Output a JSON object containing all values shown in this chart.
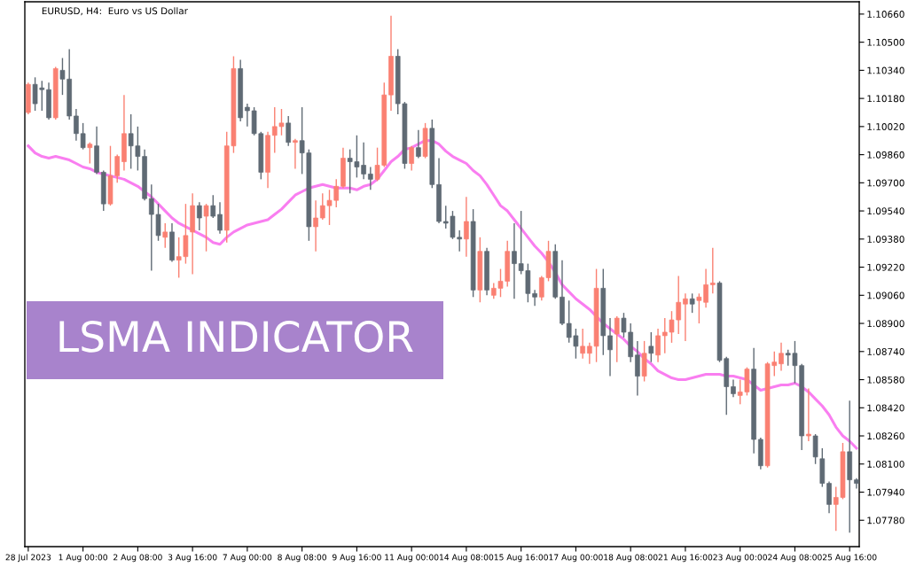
{
  "chart_data": {
    "type": "candlestick",
    "title": "EURUSD, H4:  Euro vs US Dollar",
    "annotations": [
      "LSMA INDICATOR"
    ],
    "categories": [
      "28 Jul 2023",
      null,
      null,
      null,
      null,
      null,
      null,
      null,
      "1 Aug 00:00",
      null,
      null,
      null,
      null,
      null,
      null,
      null,
      "2 Aug 08:00",
      null,
      null,
      null,
      null,
      null,
      null,
      null,
      "3 Aug 16:00",
      null,
      null,
      null,
      null,
      null,
      null,
      null,
      "7 Aug 00:00",
      null,
      null,
      null,
      null,
      null,
      null,
      null,
      "8 Aug 08:00",
      null,
      null,
      null,
      null,
      null,
      null,
      null,
      "9 Aug 16:00",
      null,
      null,
      null,
      null,
      null,
      null,
      null,
      "11 Aug 00:00",
      null,
      null,
      null,
      null,
      null,
      null,
      null,
      "14 Aug 08:00",
      null,
      null,
      null,
      null,
      null,
      null,
      null,
      "15 Aug 16:00",
      null,
      null,
      null,
      null,
      null,
      null,
      null,
      "17 Aug 00:00",
      null,
      null,
      null,
      null,
      null,
      null,
      null,
      "18 Aug 08:00",
      null,
      null,
      null,
      null,
      null,
      null,
      null,
      "21 Aug 16:00",
      null,
      null,
      null,
      null,
      null,
      null,
      null,
      "23 Aug 00:00",
      null,
      null,
      null,
      null,
      null,
      null,
      null,
      "24 Aug 08:00",
      null,
      null,
      null,
      null,
      null,
      null,
      null,
      "25 Aug 16:00",
      null
    ],
    "ylim": [
      1.0763,
      1.1073
    ],
    "yticks": [
      {
        "value": 1.1066,
        "label": "1.10660"
      },
      {
        "value": 1.105,
        "label": "1.10500"
      },
      {
        "value": 1.1034,
        "label": "1.10340"
      },
      {
        "value": 1.1018,
        "label": "1.10180"
      },
      {
        "value": 1.1002,
        "label": "1.10020"
      },
      {
        "value": 1.0986,
        "label": "1.09860"
      },
      {
        "value": 1.097,
        "label": "1.09700"
      },
      {
        "value": 1.0954,
        "label": "1.09540"
      },
      {
        "value": 1.0938,
        "label": "1.09380"
      },
      {
        "value": 1.0922,
        "label": "1.09220"
      },
      {
        "value": 1.0906,
        "label": "1.09060"
      },
      {
        "value": 1.089,
        "label": "1.08900"
      },
      {
        "value": 1.0874,
        "label": "1.08740"
      },
      {
        "value": 1.0858,
        "label": "1.08580"
      },
      {
        "value": 1.0842,
        "label": "1.08420"
      },
      {
        "value": 1.0826,
        "label": "1.08260"
      },
      {
        "value": 1.081,
        "label": "1.08100"
      },
      {
        "value": 1.0794,
        "label": "1.07940"
      },
      {
        "value": 1.0778,
        "label": "1.07780"
      }
    ],
    "grid": false,
    "colors": [
      "#fa8072",
      "#5f6a74",
      "#5f6a74",
      "#5f6a74",
      "#fa8072",
      "#5f6a74",
      "#5f6a74",
      "#5f6a74",
      "#5f6a74",
      "#fa8072",
      "#5f6a74",
      "#5f6a74",
      "#fa8072",
      "#fa8072",
      "#fa8072",
      "#5f6a74",
      "#5f6a74",
      "#5f6a74",
      "#5f6a74",
      "#5f6a74",
      "#fa8072",
      "#5f6a74",
      "#fa8072",
      "#fa8072",
      "#fa8072",
      "#5f6a74",
      "#fa8072",
      "#5f6a74",
      "#5f6a74",
      "#fa8072",
      "#fa8072",
      "#5f6a74",
      "#5f6a74",
      "#5f6a74",
      "#5f6a74",
      "#fa8072",
      "#fa8072",
      "#fa8072",
      "#5f6a74",
      "#fa8072",
      "#5f6a74",
      "#5f6a74",
      "#fa8072",
      "#fa8072",
      "#fa8072",
      "#fa8072",
      "#fa8072",
      "#5f6a74",
      "#5f6a74",
      "#5f6a74",
      "#5f6a74",
      "#fa8072",
      "#fa8072",
      "#fa8072",
      "#5f6a74",
      "#5f6a74",
      "#fa8072",
      "#5f6a74",
      "#fa8072",
      "#5f6a74",
      "#5f6a74",
      "#5f6a74",
      "#5f6a74",
      "#5f6a74",
      "#fa8072",
      "#5f6a74",
      "#fa8072",
      "#5f6a74",
      "#fa8072",
      "#fa8072",
      "#fa8072",
      "#5f6a74",
      "#5f6a74",
      "#5f6a74",
      "#5f6a74",
      "#fa8072",
      "#fa8072",
      "#5f6a74",
      "#5f6a74",
      "#5f6a74",
      "#5f6a74",
      "#fa8072",
      "#fa8072",
      "#fa8072",
      "#5f6a74",
      "#5f6a74",
      "#fa8072",
      "#5f6a74",
      "#5f6a74",
      "#5f6a74",
      "#fa8072",
      "#5f6a74",
      "#fa8072",
      "#fa8072",
      "#fa8072",
      "#fa8072",
      "#fa8072",
      "#5f6a74",
      "#fa8072",
      "#fa8072",
      "#fa8072",
      "#5f6a74",
      "#5f6a74",
      "#5f6a74",
      "#fa8072",
      "#fa8072",
      "#5f6a74",
      "#5f6a74",
      "#fa8072",
      "#fa8072",
      "#fa8072",
      "#5f6a74",
      "#5f6a74",
      "#5f6a74",
      "#fa8072",
      "#5f6a74",
      "#5f6a74",
      "#5f6a74",
      "#fa8072",
      "#fa8072",
      "#5f6a74",
      "#5f6a74"
    ],
    "ohlc": [
      [
        1.101,
        1.1027,
        1.1009,
        1.1026
      ],
      [
        1.1026,
        1.103,
        1.1011,
        1.1015
      ],
      [
        1.1024,
        1.1028,
        1.1011,
        1.1023
      ],
      [
        1.1023,
        1.1027,
        1.1006,
        1.1007
      ],
      [
        1.1007,
        1.1036,
        1.1006,
        1.1035
      ],
      [
        1.1034,
        1.1041,
        1.102,
        1.1029
      ],
      [
        1.1029,
        1.1046,
        1.1006,
        1.1008
      ],
      [
        1.1008,
        1.1012,
        1.0994,
        1.0998
      ],
      [
        1.0998,
        1.1004,
        1.0989,
        1.099
      ],
      [
        1.099,
        1.0993,
        1.0981,
        1.0992
      ],
      [
        1.0991,
        1.1002,
        1.0975,
        1.0976
      ],
      [
        1.0976,
        1.0977,
        1.0954,
        1.0958
      ],
      [
        1.0958,
        1.0991,
        1.0957,
        1.0974
      ],
      [
        1.0974,
        1.0986,
        1.097,
        1.0985
      ],
      [
        1.0982,
        1.102,
        1.0977,
        1.0998
      ],
      [
        1.0998,
        1.1009,
        1.0978,
        1.0991
      ],
      [
        1.0991,
        1.1002,
        1.0977,
        1.0985
      ],
      [
        1.0985,
        1.0989,
        1.096,
        1.0961
      ],
      [
        1.0961,
        1.0969,
        1.092,
        1.0952
      ],
      [
        1.0952,
        1.0958,
        1.0937,
        1.094
      ],
      [
        1.0939,
        1.0947,
        1.0933,
        1.0942
      ],
      [
        1.0942,
        1.0947,
        1.0925,
        1.0926
      ],
      [
        1.0926,
        1.0939,
        1.0916,
        1.0928
      ],
      [
        1.0928,
        1.0958,
        1.0924,
        1.094
      ],
      [
        1.0942,
        1.0964,
        1.0918,
        1.0957
      ],
      [
        1.0957,
        1.0959,
        1.0943,
        1.095
      ],
      [
        1.0951,
        1.0958,
        1.0931,
        1.0957
      ],
      [
        1.0957,
        1.0963,
        1.095,
        1.0951
      ],
      [
        1.0952,
        1.0959,
        1.0941,
        1.0943
      ],
      [
        1.0943,
        1.0999,
        1.0936,
        1.0991
      ],
      [
        1.0991,
        1.1042,
        1.0987,
        1.1035
      ],
      [
        1.1035,
        1.104,
        1.1005,
        1.1007
      ],
      [
        1.1013,
        1.1015,
        1.1002,
        1.1011
      ],
      [
        1.1011,
        1.1013,
        1.0997,
        1.0998
      ],
      [
        1.0998,
        1.0999,
        1.0972,
        1.0976
      ],
      [
        1.0976,
        1.0999,
        1.0967,
        1.0997
      ],
      [
        1.0997,
        1.1013,
        1.0987,
        1.1002
      ],
      [
        1.1002,
        1.1012,
        1.0997,
        1.1004
      ],
      [
        1.1004,
        1.1008,
        1.0991,
        1.0993
      ],
      [
        1.0993,
        1.0995,
        1.0978,
        1.0994
      ],
      [
        1.0994,
        1.1013,
        1.0975,
        1.0987
      ],
      [
        1.0987,
        1.0989,
        1.0937,
        1.0945
      ],
      [
        1.0945,
        1.096,
        1.0931,
        1.095
      ],
      [
        1.095,
        1.0964,
        1.0949,
        1.0957
      ],
      [
        1.0957,
        1.0966,
        1.0946,
        1.096
      ],
      [
        1.096,
        1.0972,
        1.0956,
        1.0968
      ],
      [
        1.0968,
        1.099,
        1.0967,
        1.0984
      ],
      [
        1.0984,
        1.0989,
        1.0964,
        1.0982
      ],
      [
        1.0982,
        1.0997,
        1.0973,
        1.0979
      ],
      [
        1.098,
        1.0993,
        1.0972,
        1.0975
      ],
      [
        1.0975,
        1.0979,
        1.0966,
        1.0972
      ],
      [
        1.0972,
        1.099,
        1.0971,
        1.098
      ],
      [
        1.098,
        1.1027,
        1.0979,
        1.102
      ],
      [
        1.102,
        1.1065,
        1.1011,
        1.1042
      ],
      [
        1.1042,
        1.1046,
        1.1009,
        1.1015
      ],
      [
        1.1015,
        1.1016,
        1.0978,
        1.0981
      ],
      [
        1.0981,
        1.0991,
        1.0977,
        1.099
      ],
      [
        1.099,
        1.1,
        1.0984,
        1.0985
      ],
      [
        1.0985,
        1.1004,
        1.0984,
        1.1001
      ],
      [
        1.1001,
        1.1006,
        1.0967,
        1.0969
      ],
      [
        1.0969,
        1.0984,
        1.0947,
        1.0948
      ],
      [
        1.0948,
        1.0957,
        1.0944,
        1.0947
      ],
      [
        1.0951,
        1.0954,
        1.0938,
        1.0939
      ],
      [
        1.0939,
        1.0943,
        1.0931,
        1.0938
      ],
      [
        1.0938,
        1.0962,
        1.0928,
        1.0948
      ],
      [
        1.0948,
        1.0955,
        1.0905,
        1.0909
      ],
      [
        1.0909,
        1.0939,
        1.0902,
        1.0931
      ],
      [
        1.0931,
        1.0933,
        1.0906,
        1.0909
      ],
      [
        1.0906,
        1.0913,
        1.0904,
        1.091
      ],
      [
        1.091,
        1.0921,
        1.0905,
        1.0914
      ],
      [
        1.0914,
        1.0937,
        1.0911,
        1.0931
      ],
      [
        1.0931,
        1.0947,
        1.0904,
        1.0924
      ],
      [
        1.0924,
        1.0954,
        1.0918,
        1.092
      ],
      [
        1.092,
        1.0924,
        1.0902,
        1.0907
      ],
      [
        1.0907,
        1.0909,
        1.09,
        1.0905
      ],
      [
        1.0905,
        1.0917,
        1.0903,
        1.0916
      ],
      [
        1.0916,
        1.0937,
        1.0914,
        1.0931
      ],
      [
        1.0931,
        1.0935,
        1.0904,
        1.0905
      ],
      [
        1.0905,
        1.0926,
        1.0889,
        1.089
      ],
      [
        1.089,
        1.0903,
        1.0879,
        1.0882
      ],
      [
        1.0883,
        1.0887,
        1.087,
        1.0877
      ],
      [
        1.0873,
        1.0887,
        1.087,
        1.0877
      ],
      [
        1.0873,
        1.0879,
        1.0867,
        1.0877
      ],
      [
        1.0877,
        1.0921,
        1.0868,
        1.091
      ],
      [
        1.091,
        1.0921,
        1.0872,
        1.0883
      ],
      [
        1.0883,
        1.0893,
        1.086,
        1.0875
      ],
      [
        1.0884,
        1.0894,
        1.0868,
        1.0893
      ],
      [
        1.0893,
        1.0896,
        1.0882,
        1.0885
      ],
      [
        1.0885,
        1.089,
        1.0868,
        1.0871
      ],
      [
        1.0872,
        1.088,
        1.0849,
        1.086
      ],
      [
        1.086,
        1.088,
        1.0857,
        1.0873
      ],
      [
        1.0877,
        1.0885,
        1.0868,
        1.0873
      ],
      [
        1.0872,
        1.0887,
        1.0868,
        1.0883
      ],
      [
        1.0883,
        1.0893,
        1.0873,
        1.0885
      ],
      [
        1.0885,
        1.0897,
        1.0879,
        1.0892
      ],
      [
        1.0892,
        1.0917,
        1.0884,
        1.0902
      ],
      [
        1.0901,
        1.0907,
        1.088,
        1.0904
      ],
      [
        1.0904,
        1.0907,
        1.0896,
        1.0901
      ],
      [
        1.0903,
        1.0907,
        1.089,
        1.0905
      ],
      [
        1.0902,
        1.0921,
        1.0899,
        1.0912
      ],
      [
        1.0912,
        1.0933,
        1.0907,
        1.0913
      ],
      [
        1.0913,
        1.0914,
        1.0868,
        1.0869
      ],
      [
        1.087,
        1.0871,
        1.0838,
        1.0854
      ],
      [
        1.0854,
        1.0858,
        1.0848,
        1.085
      ],
      [
        1.0849,
        1.0858,
        1.0844,
        1.0851
      ],
      [
        1.0851,
        1.0865,
        1.0849,
        1.0864
      ],
      [
        1.0864,
        1.0876,
        1.0816,
        1.0824
      ],
      [
        1.0824,
        1.0825,
        1.0807,
        1.0809
      ],
      [
        1.0809,
        1.0868,
        1.0808,
        1.0867
      ],
      [
        1.0866,
        1.0874,
        1.086,
        1.0868
      ],
      [
        1.0867,
        1.0879,
        1.0863,
        1.0873
      ],
      [
        1.0873,
        1.0875,
        1.0866,
        1.0872
      ],
      [
        1.0873,
        1.088,
        1.0856,
        1.0866
      ],
      [
        1.0866,
        1.0867,
        1.0818,
        1.0826
      ],
      [
        1.0826,
        1.0853,
        1.0823,
        1.0827
      ],
      [
        1.0826,
        1.0827,
        1.081,
        1.0814
      ],
      [
        1.0813,
        1.0819,
        1.0797,
        1.0799
      ],
      [
        1.0799,
        1.08,
        1.0782,
        1.0787
      ],
      [
        1.0787,
        1.0797,
        1.0772,
        1.0791
      ],
      [
        1.0791,
        1.0822,
        1.079,
        1.0817
      ],
      [
        1.0817,
        1.0846,
        1.0771,
        1.0801
      ],
      [
        1.0801,
        1.0802,
        1.0796,
        1.0799
      ]
    ],
    "series": [
      {
        "type": "line",
        "color": "#f97ef0",
        "values": [
          1.0991,
          1.0987,
          1.0985,
          1.0984,
          1.0985,
          1.0984,
          1.0983,
          1.0981,
          1.0979,
          1.0978,
          1.0976,
          1.0975,
          1.0974,
          1.0973,
          1.0972,
          1.097,
          1.0968,
          1.0965,
          1.0962,
          1.0958,
          1.0954,
          1.095,
          1.0947,
          1.0945,
          1.0943,
          1.0941,
          1.0939,
          1.0936,
          1.0935,
          1.0939,
          1.0942,
          1.0944,
          1.0946,
          1.0947,
          1.0948,
          1.0949,
          1.0952,
          1.0955,
          1.0959,
          1.0963,
          1.0965,
          1.0967,
          1.0968,
          1.0969,
          1.0968,
          1.0967,
          1.0967,
          1.0967,
          1.0966,
          1.0968,
          1.0969,
          1.0972,
          1.0977,
          1.0982,
          1.0985,
          1.0989,
          1.099,
          1.0992,
          1.0994,
          1.0994,
          1.0992,
          1.0988,
          1.0985,
          1.0983,
          1.0981,
          1.0977,
          1.0974,
          1.0969,
          1.0963,
          1.0957,
          1.0954,
          1.0949,
          1.0944,
          1.0939,
          1.0934,
          1.093,
          1.0925,
          1.0919,
          1.0912,
          1.0908,
          1.0904,
          1.0901,
          1.0898,
          1.0894,
          1.089,
          1.0887,
          1.0884,
          1.0881,
          1.0877,
          1.0874,
          1.087,
          1.0867,
          1.0863,
          1.0861,
          1.0859,
          1.0858,
          1.0858,
          1.0859,
          1.086,
          1.0861,
          1.0861,
          1.0861,
          1.086,
          1.086,
          1.0859,
          1.0858,
          1.0855,
          1.0852,
          1.0853,
          1.0854,
          1.0855,
          1.0855,
          1.0856,
          1.0854,
          1.0851,
          1.0847,
          1.0843,
          1.0838,
          1.0831,
          1.0826,
          1.0823,
          1.0819
        ]
      }
    ]
  }
}
